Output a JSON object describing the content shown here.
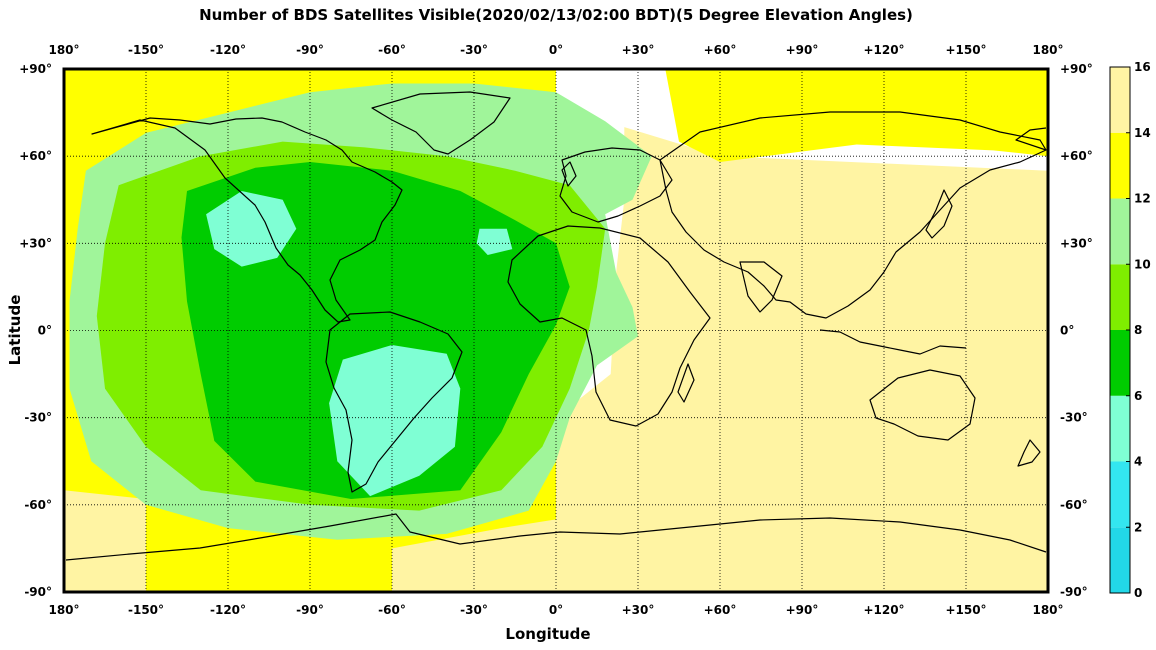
{
  "title": "Number of BDS Satellites Visible(2020/02/13/02:00 BDT)(5 Degree Elevation Angles)",
  "xlabel": "Longitude",
  "ylabel": "Latitude",
  "x_ticks": [
    "180°",
    "-150°",
    "-120°",
    "-90°",
    "-60°",
    "-30°",
    "0°",
    "+30°",
    "+60°",
    "+90°",
    "+120°",
    "+150°",
    "180°"
  ],
  "y_ticks": [
    "+90°",
    "+60°",
    "+30°",
    "0°",
    "-30°",
    "-60°",
    "-90°"
  ],
  "colorbar": {
    "ticks": [
      "0",
      "2",
      "4",
      "6",
      "8",
      "10",
      "12",
      "14",
      "16"
    ],
    "bands": [
      {
        "from": 0,
        "to": 2,
        "color": "#22d8e8"
      },
      {
        "from": 2,
        "to": 4,
        "color": "#33e6f0"
      },
      {
        "from": 4,
        "to": 6,
        "color": "#7fffd4"
      },
      {
        "from": 6,
        "to": 8,
        "color": "#00cc00"
      },
      {
        "from": 8,
        "to": 10,
        "color": "#7fee00"
      },
      {
        "from": 10,
        "to": 12,
        "color": "#a0f59a"
      },
      {
        "from": 12,
        "to": 14,
        "color": "#ffff00"
      },
      {
        "from": 14,
        "to": 16,
        "color": "#fff4a3"
      }
    ]
  },
  "chart_data": {
    "type": "heatmap",
    "title": "Number of BDS Satellites Visible(2020/02/13/02:00 BDT)(5 Degree Elevation Angles)",
    "xlabel": "Longitude",
    "ylabel": "Latitude",
    "xlim": [
      -180,
      180
    ],
    "ylim": [
      -90,
      90
    ],
    "grid": true,
    "color_range": [
      0,
      16
    ],
    "regions": [
      {
        "name": "western-hemisphere-yellow",
        "value": 13,
        "polygon": [
          [
            -180,
            90
          ],
          [
            0,
            90
          ],
          [
            0,
            -90
          ],
          [
            -180,
            -90
          ]
        ]
      },
      {
        "name": "eastern-hemisphere-pale",
        "value": 15,
        "polygon": [
          [
            25,
            70
          ],
          [
            60,
            60
          ],
          [
            180,
            55
          ],
          [
            180,
            -90
          ],
          [
            0,
            -90
          ],
          [
            0,
            -30
          ],
          [
            20,
            -15
          ],
          [
            22,
            20
          ],
          [
            25,
            45
          ]
        ]
      },
      {
        "name": "northeast-yellow",
        "value": 13,
        "polygon": [
          [
            40,
            90
          ],
          [
            180,
            90
          ],
          [
            180,
            60
          ],
          [
            160,
            62
          ],
          [
            110,
            64
          ],
          [
            60,
            58
          ],
          [
            45,
            65
          ]
        ]
      },
      {
        "name": "southwest-pale",
        "value": 15,
        "polygon": [
          [
            -180,
            -55
          ],
          [
            -150,
            -58
          ],
          [
            -150,
            -90
          ],
          [
            -180,
            -90
          ]
        ]
      },
      {
        "name": "atlantic-light-green",
        "value": 11,
        "polygon": [
          [
            -172,
            55
          ],
          [
            -150,
            68
          ],
          [
            -120,
            75
          ],
          [
            -90,
            82
          ],
          [
            -60,
            85
          ],
          [
            -30,
            85
          ],
          [
            0,
            82
          ],
          [
            18,
            72
          ],
          [
            35,
            60
          ],
          [
            28,
            45
          ],
          [
            18,
            40
          ],
          [
            22,
            20
          ],
          [
            28,
            8
          ],
          [
            30,
            -2
          ],
          [
            15,
            -12
          ],
          [
            5,
            -30
          ],
          [
            0,
            -45
          ],
          [
            -10,
            -62
          ],
          [
            -40,
            -70
          ],
          [
            -80,
            -72
          ],
          [
            -120,
            -68
          ],
          [
            -150,
            -60
          ],
          [
            -170,
            -45
          ],
          [
            -178,
            -20
          ],
          [
            -178,
            10
          ],
          [
            -175,
            35
          ]
        ]
      },
      {
        "name": "green-8-10",
        "value": 9,
        "polygon": [
          [
            -160,
            50
          ],
          [
            -130,
            60
          ],
          [
            -100,
            65
          ],
          [
            -70,
            63
          ],
          [
            -40,
            60
          ],
          [
            -15,
            55
          ],
          [
            5,
            50
          ],
          [
            18,
            35
          ],
          [
            15,
            15
          ],
          [
            12,
            0
          ],
          [
            5,
            -20
          ],
          [
            -5,
            -40
          ],
          [
            -20,
            -55
          ],
          [
            -50,
            -62
          ],
          [
            -90,
            -60
          ],
          [
            -130,
            -55
          ],
          [
            -150,
            -40
          ],
          [
            -165,
            -20
          ],
          [
            -168,
            5
          ],
          [
            -165,
            30
          ]
        ]
      },
      {
        "name": "green-6-8",
        "value": 7,
        "polygon": [
          [
            -135,
            48
          ],
          [
            -110,
            56
          ],
          [
            -90,
            58
          ],
          [
            -60,
            55
          ],
          [
            -35,
            48
          ],
          [
            -15,
            38
          ],
          [
            0,
            30
          ],
          [
            5,
            15
          ],
          [
            0,
            2
          ],
          [
            -10,
            -15
          ],
          [
            -20,
            -35
          ],
          [
            -35,
            -55
          ],
          [
            -75,
            -58
          ],
          [
            -110,
            -52
          ],
          [
            -125,
            -38
          ],
          [
            -130,
            -15
          ],
          [
            -135,
            10
          ],
          [
            -137,
            32
          ]
        ]
      },
      {
        "name": "aqua-north-pacific",
        "value": 5,
        "polygon": [
          [
            -128,
            40
          ],
          [
            -115,
            48
          ],
          [
            -100,
            45
          ],
          [
            -95,
            35
          ],
          [
            -102,
            25
          ],
          [
            -115,
            22
          ],
          [
            -125,
            28
          ]
        ]
      },
      {
        "name": "aqua-south-america",
        "value": 5,
        "polygon": [
          [
            -78,
            -10
          ],
          [
            -60,
            -5
          ],
          [
            -40,
            -8
          ],
          [
            -35,
            -20
          ],
          [
            -37,
            -40
          ],
          [
            -50,
            -50
          ],
          [
            -68,
            -57
          ],
          [
            -80,
            -45
          ],
          [
            -83,
            -25
          ]
        ]
      },
      {
        "name": "aqua-atlantic-spot",
        "value": 5,
        "polygon": [
          [
            -28,
            35
          ],
          [
            -18,
            35
          ],
          [
            -16,
            28
          ],
          [
            -25,
            26
          ],
          [
            -29,
            30
          ]
        ]
      },
      {
        "name": "south-pale-band",
        "value": 15,
        "polygon": [
          [
            -60,
            -75
          ],
          [
            -20,
            -68
          ],
          [
            0,
            -65
          ],
          [
            0,
            -90
          ],
          [
            -60,
            -90
          ]
        ]
      }
    ]
  }
}
